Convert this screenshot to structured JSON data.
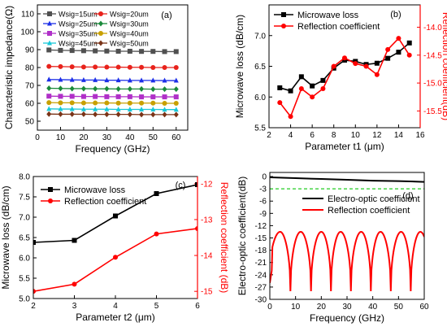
{
  "chart_data": [
    {
      "panel": "(a)",
      "type": "line",
      "xlabel": "Frequency (GHz)",
      "ylabel": "Characteristic impedance(Ω)",
      "xlim": [
        0,
        65
      ],
      "ylim": [
        45,
        115
      ],
      "xticks": [
        0,
        10,
        20,
        30,
        40,
        50,
        60
      ],
      "yticks": [
        50,
        60,
        70,
        80,
        90,
        100,
        110
      ],
      "grid": false,
      "legend_position": "top, two columns",
      "x": [
        5,
        10,
        15,
        20,
        25,
        30,
        35,
        40,
        45,
        50,
        55,
        60
      ],
      "series": [
        {
          "name": "Wsig=15um",
          "color": "#505050",
          "marker": "square",
          "values": [
            89.8,
            89.6,
            89.5,
            89.4,
            89.3,
            89.2,
            89.1,
            89.1,
            89.0,
            89.0,
            88.9,
            88.9
          ]
        },
        {
          "name": "Wsig=20um",
          "color": "#e8221b",
          "marker": "circle",
          "values": [
            80.6,
            80.5,
            80.4,
            80.3,
            80.3,
            80.2,
            80.2,
            80.1,
            80.1,
            80.0,
            80.0,
            80.0
          ]
        },
        {
          "name": "Wsig=25um",
          "color": "#1c2fe8",
          "marker": "triangle",
          "values": [
            73.3,
            73.2,
            73.1,
            73.0,
            73.0,
            72.9,
            72.9,
            72.8,
            72.8,
            72.8,
            72.7,
            72.7
          ]
        },
        {
          "name": "Wsig=30um",
          "color": "#1a8a3a",
          "marker": "diamond",
          "values": [
            68.4,
            68.3,
            68.2,
            68.2,
            68.1,
            68.1,
            68.0,
            68.0,
            68.0,
            67.9,
            67.9,
            67.9
          ]
        },
        {
          "name": "Wsig=35um",
          "color": "#b030c8",
          "marker": "square",
          "values": [
            64.0,
            63.9,
            63.9,
            63.8,
            63.8,
            63.7,
            63.7,
            63.7,
            63.6,
            63.6,
            63.6,
            63.6
          ]
        },
        {
          "name": "Wsig=40um",
          "color": "#c8a000",
          "marker": "circle",
          "values": [
            60.4,
            60.3,
            60.3,
            60.2,
            60.2,
            60.2,
            60.1,
            60.1,
            60.1,
            60.1,
            60.0,
            60.0
          ]
        },
        {
          "name": "Wsig=45um",
          "color": "#18c8d8",
          "marker": "triangle",
          "values": [
            56.9,
            56.8,
            56.8,
            56.7,
            56.7,
            56.7,
            56.6,
            56.6,
            56.6,
            56.6,
            56.5,
            56.5
          ]
        },
        {
          "name": "Wsig=50um",
          "color": "#7a3418",
          "marker": "diamond",
          "values": [
            54.0,
            53.9,
            53.9,
            53.9,
            53.8,
            53.8,
            53.8,
            53.8,
            53.7,
            53.7,
            53.7,
            53.7
          ]
        }
      ]
    },
    {
      "panel": "(b)",
      "type": "line",
      "xlabel": "Parameter t1 (μm)",
      "ylabel": "Microwave loss (dB/cm)",
      "ylabel_right": "Reflection coefficient(dB)",
      "xlim": [
        2,
        16
      ],
      "ylim": [
        5.5,
        7.5
      ],
      "ylim_right": [
        -15.8,
        -13.6
      ],
      "xticks": [
        2,
        4,
        6,
        8,
        10,
        12,
        14,
        16
      ],
      "yticks": [
        5.5,
        6.0,
        6.5,
        7.0
      ],
      "yticks_right": [
        -15.5,
        -15.0,
        -14.5,
        -14.0
      ],
      "grid": false,
      "legend_position": "top-left",
      "x": [
        3,
        4,
        5,
        6,
        7,
        8,
        9,
        10,
        11,
        12,
        13,
        14,
        15
      ],
      "series": [
        {
          "name": "Microwave loss",
          "color": "#000000",
          "axis": "left",
          "values": [
            6.15,
            6.1,
            6.33,
            6.18,
            6.27,
            6.47,
            6.6,
            6.58,
            6.53,
            6.55,
            6.63,
            6.73,
            6.88
          ]
        },
        {
          "name": "Reflection coefficient",
          "color": "#ff0000",
          "axis": "right",
          "values": [
            -15.35,
            -15.6,
            -15.1,
            -15.25,
            -15.1,
            -14.7,
            -14.55,
            -14.65,
            -14.7,
            -14.85,
            -14.4,
            -14.2,
            -14.5
          ]
        }
      ]
    },
    {
      "panel": "(c)",
      "type": "line",
      "xlabel": "Parameter t2 (μm)",
      "ylabel": "Microwave loss (dB/cm)",
      "ylabel_right": "Reflection coefficient (dB)",
      "xlim": [
        2,
        6
      ],
      "ylim": [
        5.0,
        8.0
      ],
      "ylim_right": [
        -15.2,
        -11.8
      ],
      "xticks": [
        2,
        3,
        4,
        5,
        6
      ],
      "yticks": [
        5.0,
        5.5,
        6.0,
        6.5,
        7.0,
        7.5,
        8.0
      ],
      "yticks_right": [
        -15,
        -14,
        -13,
        -12
      ],
      "grid": false,
      "legend_position": "top-left",
      "x": [
        2,
        3,
        4,
        5,
        6
      ],
      "series": [
        {
          "name": "Microwave loss",
          "color": "#000000",
          "axis": "left",
          "values": [
            6.38,
            6.43,
            7.03,
            7.58,
            7.8
          ]
        },
        {
          "name": "Reflection coefficient",
          "color": "#ff0000",
          "axis": "right",
          "values": [
            -15.0,
            -14.8,
            -14.05,
            -13.4,
            -13.25
          ]
        }
      ]
    },
    {
      "panel": "(d)",
      "type": "line",
      "xlabel": "Frequency (GHz)",
      "ylabel": "Electro-optic coefficient(dB)",
      "xlim": [
        0,
        60
      ],
      "ylim": [
        -30,
        1
      ],
      "xticks": [
        0,
        10,
        20,
        30,
        40,
        50,
        60
      ],
      "yticks": [
        0,
        -3,
        -6,
        -9,
        -12,
        -15,
        -18,
        -21,
        -24,
        -27,
        -30
      ],
      "grid": false,
      "legend_position": "upper-middle",
      "reference_line": {
        "y": -3,
        "color": "#22cc22",
        "style": "dashed"
      },
      "series": [
        {
          "name": "Electro-optic coefficient",
          "color": "#000000",
          "shape": "nearly flat, -0.2 dB at 0 GHz to -1.3 dB at 60 GHz",
          "x": [
            0,
            10,
            20,
            30,
            40,
            50,
            60
          ],
          "values": [
            -0.2,
            -0.4,
            -0.6,
            -0.8,
            -1.0,
            -1.1,
            -1.3
          ]
        },
        {
          "name": "Reflection coefficient",
          "color": "#ff0000",
          "shape": "periodic ripple, peaks near -13.5 dB every ~7.8 GHz starting ~4 GHz, dips to about -28 dB; starts near -22 dB at 0 GHz",
          "peaks_x": [
            4,
            12,
            20,
            27.5,
            35.5,
            43,
            51,
            58.5
          ],
          "peak_value": -13.5,
          "min_value": -28,
          "start_value": -22
        }
      ]
    }
  ]
}
